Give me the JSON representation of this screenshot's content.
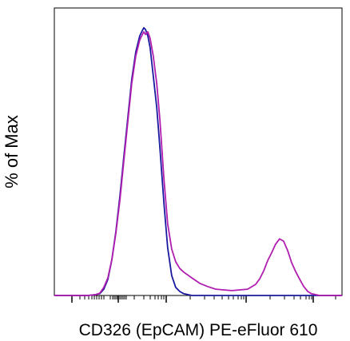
{
  "chart_data": {
    "type": "line",
    "x_label": "CD326 (EpCAM) PE-eFluor 610",
    "y_label": "% of Max",
    "x": [
      0,
      11.7,
      14.4,
      15.8,
      17.2,
      18.6,
      20,
      21.4,
      22.8,
      24.2,
      25.6,
      26.9,
      28.3,
      29.7,
      30.6,
      31.1,
      31.7,
      32.5,
      33.3,
      34.4,
      35.6,
      36.7,
      38.1,
      39.4,
      40.8,
      42.2,
      43.6,
      45,
      47.8,
      50.6,
      53.3,
      56.1,
      61.7,
      67.2,
      70,
      71.4,
      72.8,
      74.2,
      75.6,
      76.9,
      78.3,
      79.7,
      81.1,
      82.5,
      83.9,
      85.3,
      86.7,
      88.1,
      89.4,
      92.2,
      100
    ],
    "series": [
      {
        "color": "#1a1aa0",
        "values": [
          0,
          0,
          0.3,
          0.6,
          2.2,
          5.6,
          12.5,
          22.2,
          34.7,
          48.6,
          62.5,
          75,
          84.7,
          90.3,
          92.2,
          93.1,
          92.5,
          90.3,
          86.1,
          76.4,
          65.3,
          51.4,
          31.9,
          16.7,
          6.9,
          2.8,
          1.4,
          0.6,
          0,
          0,
          0,
          0,
          0,
          0,
          0,
          0,
          0,
          0,
          0,
          0,
          0,
          0,
          0,
          0,
          0,
          0,
          0,
          0,
          0,
          0,
          0
        ]
      },
      {
        "color": "#b01eb0",
        "values": [
          0,
          0,
          0.3,
          0.8,
          2.8,
          6.1,
          12.5,
          21.7,
          33.3,
          47.2,
          61.1,
          73.6,
          83.3,
          88.9,
          90.8,
          91.7,
          90.8,
          91.7,
          89.4,
          83.3,
          73.6,
          61.1,
          40.3,
          25,
          16.1,
          11.7,
          9.4,
          8.1,
          6.1,
          4.2,
          3.1,
          2.2,
          1.7,
          2.2,
          3.9,
          5.8,
          8.6,
          12.2,
          15,
          17.8,
          19.7,
          18.9,
          15.6,
          11.4,
          8.3,
          5.6,
          3.1,
          1.4,
          0.6,
          0,
          0
        ]
      }
    ],
    "xlim": [
      0,
      100
    ],
    "ylim": [
      0,
      100
    ]
  }
}
